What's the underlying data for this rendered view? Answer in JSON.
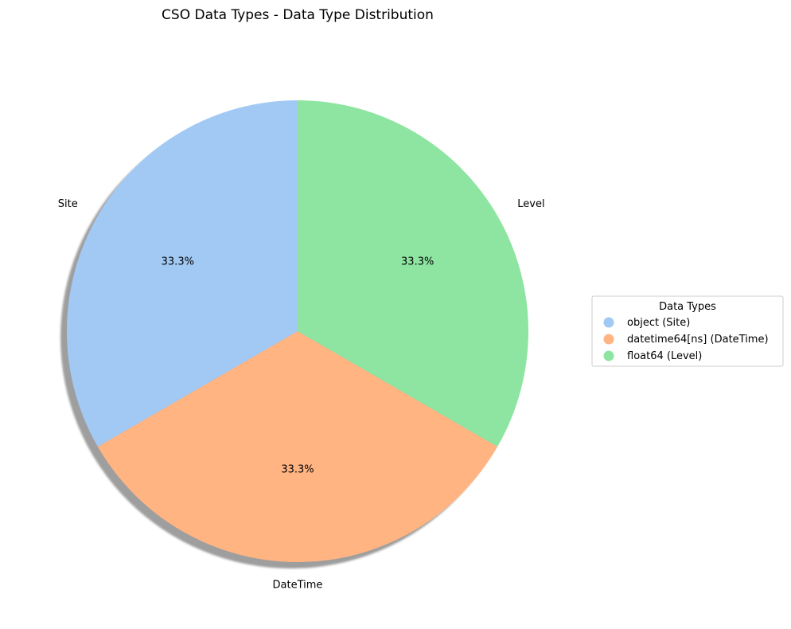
{
  "chart_data": {
    "type": "pie",
    "title": "CSO Data Types - Data Type Distribution",
    "categories": [
      "Site",
      "DateTime",
      "Level"
    ],
    "values": [
      1,
      1,
      1
    ],
    "percent_labels": [
      "33.3%",
      "33.3%",
      "33.3%"
    ],
    "colors": [
      "#a1c9f4",
      "#ffb482",
      "#8de5a1"
    ],
    "shadow": true,
    "legend": {
      "title": "Data Types",
      "placement": "right",
      "entries": [
        "object (Site)",
        "datetime64[ns] (DateTime)",
        "float64 (Level)"
      ]
    }
  }
}
